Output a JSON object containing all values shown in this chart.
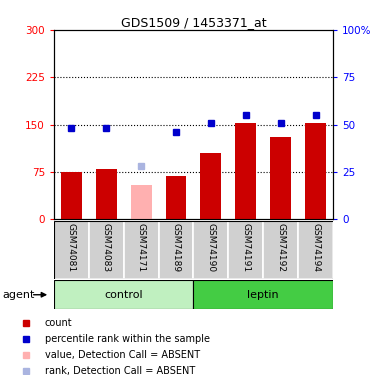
{
  "title": "GDS1509 / 1453371_at",
  "samples": [
    "GSM74081",
    "GSM74083",
    "GSM74171",
    "GSM74189",
    "GSM74190",
    "GSM74191",
    "GSM74192",
    "GSM74194"
  ],
  "count_values": [
    75,
    80,
    55,
    68,
    105,
    152,
    130,
    152
  ],
  "count_absent": [
    false,
    false,
    true,
    false,
    false,
    false,
    false,
    false
  ],
  "rank_values": [
    48,
    48,
    28,
    46,
    51,
    55,
    51,
    55
  ],
  "rank_absent": [
    false,
    false,
    true,
    false,
    false,
    false,
    false,
    false
  ],
  "groups": [
    "control",
    "control",
    "control",
    "control",
    "leptin",
    "leptin",
    "leptin",
    "leptin"
  ],
  "ylim_left": [
    0,
    300
  ],
  "ylim_right": [
    0,
    100
  ],
  "yticks_left": [
    0,
    75,
    150,
    225,
    300
  ],
  "yticks_right": [
    0,
    25,
    50,
    75,
    100
  ],
  "bar_color": "#cc0000",
  "bar_absent_color": "#ffb0b0",
  "dot_color": "#0000cc",
  "dot_absent_color": "#aab4e0",
  "control_bg": "#c0f0c0",
  "leptin_bg": "#44cc44",
  "header_bg": "#d0d0d0",
  "bar_width": 0.6
}
